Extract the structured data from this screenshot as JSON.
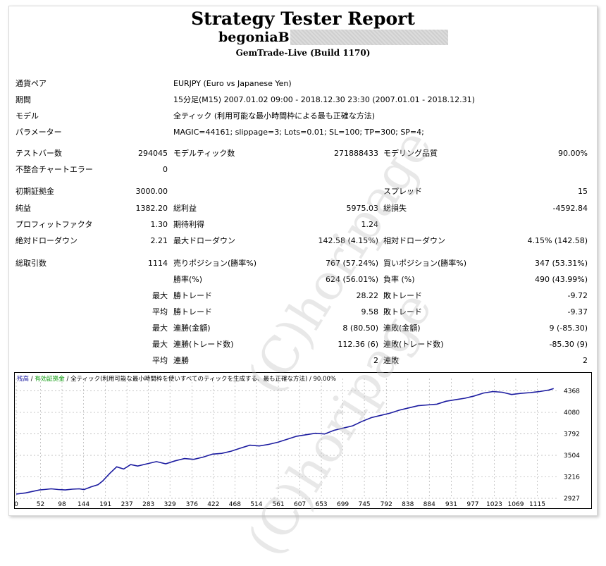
{
  "report": {
    "title": "Strategy Tester Report",
    "account": "begoniaBS",
    "server": "GemTrade-Live (Build 1170)"
  },
  "info": [
    {
      "label": "通貨ペア",
      "value": "EURJPY (Euro vs Japanese Yen)"
    },
    {
      "label": "期間",
      "value": "15分足(M15) 2007.01.02 09:00 - 2018.12.30 23:30 (2007.01.01 - 2018.12.31)"
    },
    {
      "label": "モデル",
      "value": "全ティック (利用可能な最小時間枠による最も正確な方法)"
    },
    {
      "label": "パラメーター",
      "value": "MAGIC=44161; slippage=3; Lots=0.01; SL=100; TP=300; SP=4;"
    }
  ],
  "stats": {
    "test_bars_label": "テストバー数",
    "test_bars": "294045",
    "model_ticks_label": "モデルティック数",
    "model_ticks": "271888433",
    "model_quality_label": "モデリング品質",
    "model_quality": "90.00%",
    "mismatch_label": "不整合チャートエラー",
    "mismatch": "0",
    "initial_deposit_label": "初期証拠金",
    "initial_deposit": "3000.00",
    "spread_label": "スプレッド",
    "spread": "15",
    "net_profit_label": "純益",
    "net_profit": "1382.20",
    "gross_profit_label": "総利益",
    "gross_profit": "5975.03",
    "gross_loss_label": "総損失",
    "gross_loss": "-4592.84",
    "profit_factor_label": "プロフィットファクタ",
    "profit_factor": "1.30",
    "expected_payoff_label": "期待利得",
    "expected_payoff": "1.24",
    "abs_dd_label": "絶対ドローダウン",
    "abs_dd": "2.21",
    "max_dd_label": "最大ドローダウン",
    "max_dd": "142.58 (4.15%)",
    "rel_dd_label": "相対ドローダウン",
    "rel_dd": "4.15% (142.58)",
    "total_trades_label": "総取引数",
    "total_trades": "1114",
    "short_label": "売りポジション(勝率%)",
    "short": "767 (57.24%)",
    "long_label": "買いポジション(勝率%)",
    "long": "347 (53.31%)",
    "win_pct_label": "勝率(%)",
    "win_pct": "624 (56.01%)",
    "loss_pct_label": "負率 (%)",
    "loss_pct": "490 (43.99%)",
    "q_max": "最大",
    "q_avg": "平均",
    "largest_win_label": "勝トレード",
    "largest_win": "28.22",
    "largest_loss_label": "敗トレード",
    "largest_loss": "-9.72",
    "avg_win_label": "勝トレード",
    "avg_win": "9.58",
    "avg_loss_label": "敗トレード",
    "avg_loss": "-9.37",
    "max_consec_win_money_label": "連勝(金額)",
    "max_consec_win_money": "8 (80.50)",
    "max_consec_loss_money_label": "連敗(金額)",
    "max_consec_loss_money": "9 (-85.30)",
    "max_consec_win_count_label": "連勝(トレード数)",
    "max_consec_win_count": "112.36 (6)",
    "max_consec_loss_count_label": "連敗(トレード数)",
    "max_consec_loss_count": "-85.30 (9)",
    "avg_consec_win_label": "連勝",
    "avg_consec_win": "2",
    "avg_consec_loss_label": "連敗",
    "avg_consec_loss": "2"
  },
  "chart_legend": {
    "balance": "残高",
    "separator1": " / ",
    "equity": "有効証拠金",
    "rest": " / 全ティック(利用可能な最小時間枠を使いすべてのティックを生成する、最も正確な方法) / 90.00%"
  },
  "watermark": "(C)horipage",
  "chart_data": {
    "type": "line",
    "x_ticks": [
      "0",
      "52",
      "98",
      "144",
      "191",
      "237",
      "283",
      "329",
      "376",
      "422",
      "468",
      "514",
      "561",
      "607",
      "653",
      "699",
      "745",
      "792",
      "838",
      "884",
      "931",
      "977",
      "1023",
      "1069",
      "1115"
    ],
    "y_ticks": [
      "4368",
      "4080",
      "3792",
      "3504",
      "3216",
      "2927"
    ],
    "xlim": [
      0,
      1158
    ],
    "ylim": [
      2927,
      4440
    ],
    "grid": true,
    "colors": {
      "balance": "#1c1ca0",
      "grid": "#b0b0b0"
    },
    "series": [
      {
        "name": "残高",
        "x": [
          0,
          20,
          35,
          50,
          60,
          75,
          90,
          105,
          120,
          135,
          145,
          160,
          175,
          185,
          200,
          215,
          230,
          245,
          260,
          280,
          300,
          320,
          340,
          360,
          380,
          400,
          420,
          440,
          460,
          480,
          500,
          520,
          540,
          560,
          580,
          600,
          620,
          640,
          660,
          680,
          700,
          720,
          740,
          760,
          780,
          800,
          820,
          840,
          860,
          880,
          900,
          920,
          940,
          960,
          980,
          1000,
          1020,
          1040,
          1060,
          1080,
          1100,
          1120,
          1140,
          1150
        ],
        "y": [
          2985,
          3000,
          3020,
          3040,
          3045,
          3055,
          3045,
          3040,
          3050,
          3055,
          3045,
          3080,
          3110,
          3160,
          3260,
          3350,
          3320,
          3380,
          3360,
          3390,
          3420,
          3390,
          3430,
          3460,
          3450,
          3480,
          3520,
          3530,
          3560,
          3600,
          3640,
          3630,
          3650,
          3680,
          3720,
          3760,
          3780,
          3800,
          3790,
          3840,
          3870,
          3900,
          3960,
          4010,
          4040,
          4070,
          4110,
          4140,
          4170,
          4180,
          4190,
          4230,
          4250,
          4270,
          4300,
          4340,
          4360,
          4350,
          4320,
          4335,
          4345,
          4360,
          4380,
          4400
        ]
      }
    ]
  }
}
